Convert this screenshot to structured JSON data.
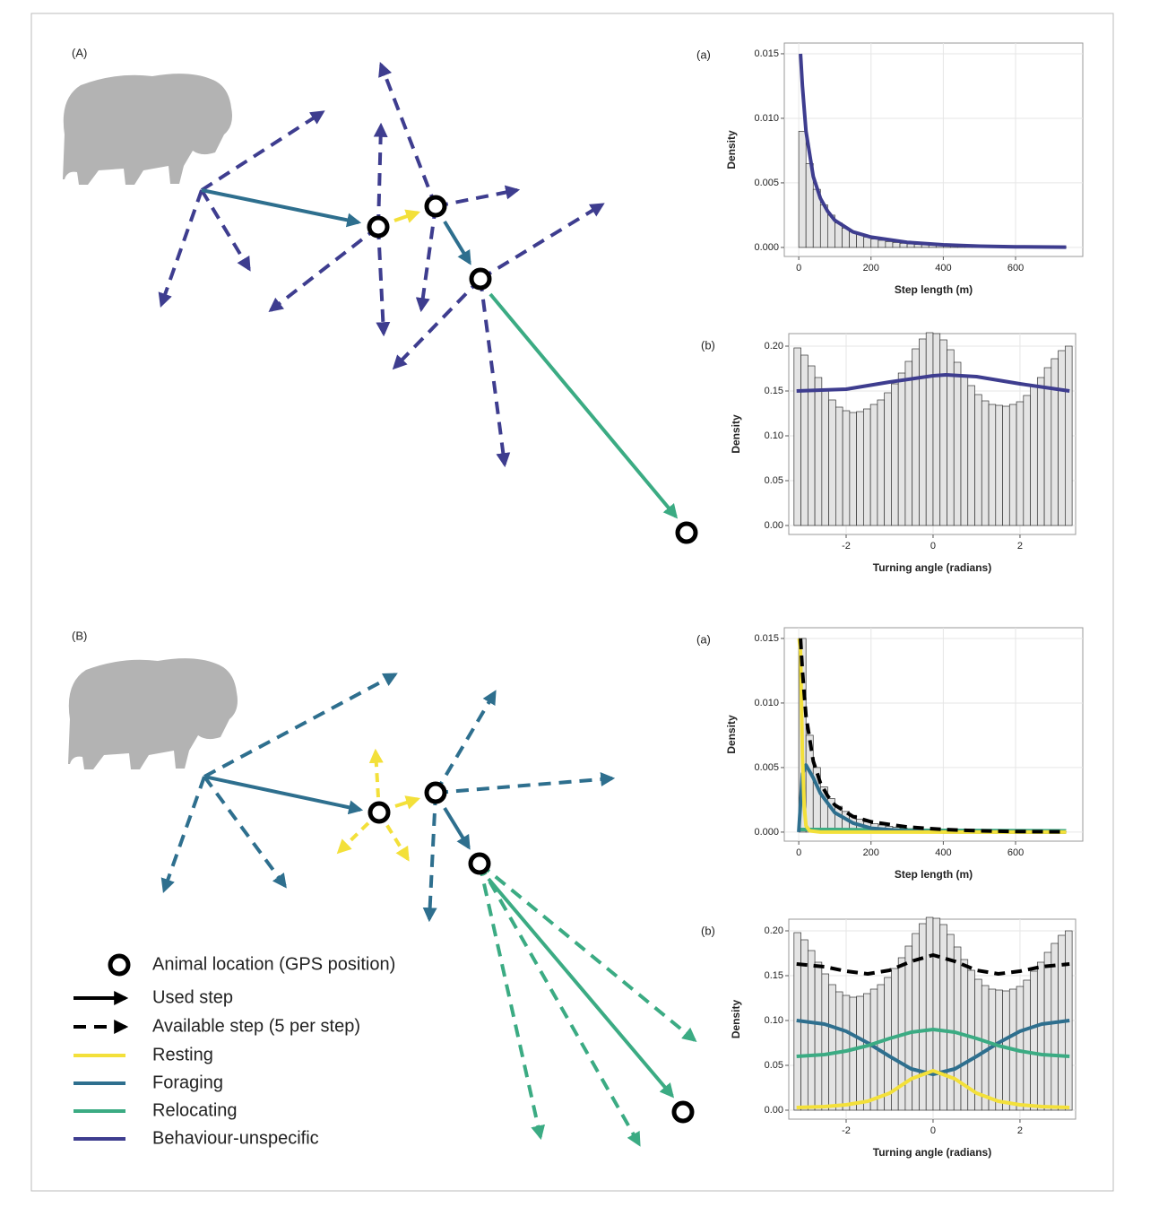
{
  "panels": [
    {
      "label": "(A)"
    },
    {
      "label": "(B)"
    }
  ],
  "legend": {
    "entries": [
      {
        "label": "Animal location (GPS position)"
      },
      {
        "label": "Used step",
        "color": "#000000"
      },
      {
        "label": "Available step (5 per step)",
        "color": "#000000"
      },
      {
        "label": "Resting",
        "color": "#f3e03a"
      },
      {
        "label": "Foraging",
        "color": "#2e6f8e"
      },
      {
        "label": "Relocating",
        "color": "#3bab83"
      },
      {
        "label": "Behaviour-unspecific",
        "color": "#3e3d8f"
      }
    ]
  },
  "chart_data": [
    {
      "type": "histogram",
      "panel_label": "(a)",
      "xlabel": "Step length (m)",
      "ylabel": "Density",
      "grid": true,
      "bar_color": "#e4e4e4",
      "bins": [
        0,
        20,
        40,
        60,
        80,
        100,
        120,
        140,
        160,
        180,
        200,
        220,
        240,
        260,
        280,
        300,
        320,
        340,
        360,
        380,
        400,
        420,
        440,
        460,
        480,
        500,
        520,
        540,
        560,
        580,
        600,
        620,
        640,
        660,
        680,
        700,
        720,
        740
      ],
      "values": [
        0.009,
        0.0065,
        0.0045,
        0.0033,
        0.0025,
        0.0019,
        0.0015,
        0.0012,
        0.001,
        0.0008,
        0.00065,
        0.00055,
        0.00045,
        0.00038,
        0.00032,
        0.00027,
        0.00023,
        0.0002,
        0.00017,
        0.00015,
        0.00013,
        0.00011,
        0.0001,
        9e-05,
        8e-05,
        7e-05,
        6e-05,
        5e-05,
        5e-05,
        4e-05,
        4e-05,
        3e-05,
        3e-05,
        3e-05,
        2e-05,
        2e-05,
        2e-05
      ],
      "xlim": [
        -40,
        786
      ],
      "ylim": [
        -0.0007,
        0.01583
      ],
      "xticks": [
        0,
        200,
        400,
        600
      ],
      "yticks": [
        {
          "value": 0,
          "label": "0.000"
        },
        {
          "value": 0.005,
          "label": "0.005"
        },
        {
          "value": 0.01,
          "label": "0.010"
        },
        {
          "value": 0.015,
          "label": "0.015"
        }
      ],
      "curves": [
        {
          "color": "#3e3d8f",
          "dashed": false,
          "x": [
            5,
            10,
            20,
            40,
            60,
            80,
            100,
            150,
            200,
            300,
            400,
            500,
            600,
            740
          ],
          "values": [
            0.015,
            0.0125,
            0.009,
            0.0055,
            0.0038,
            0.0028,
            0.0021,
            0.0012,
            0.0008,
            0.0004,
            0.0002,
            0.0001,
            5e-05,
            2e-05
          ]
        }
      ]
    },
    {
      "type": "histogram",
      "panel_label": "(b)",
      "xlabel": "Turning angle (radians)",
      "ylabel": "Density",
      "grid": true,
      "bar_color": "#e4e4e4",
      "bins": [
        -3.2,
        -3.04,
        -2.88,
        -2.72,
        -2.56,
        -2.4,
        -2.24,
        -2.08,
        -1.92,
        -1.76,
        -1.6,
        -1.44,
        -1.28,
        -1.12,
        -0.96,
        -0.8,
        -0.64,
        -0.48,
        -0.32,
        -0.16,
        0,
        0.16,
        0.32,
        0.48,
        0.64,
        0.8,
        0.96,
        1.12,
        1.28,
        1.44,
        1.6,
        1.76,
        1.92,
        2.08,
        2.24,
        2.4,
        2.56,
        2.72,
        2.88,
        3.04,
        3.2
      ],
      "values": [
        0.198,
        0.19,
        0.178,
        0.165,
        0.152,
        0.14,
        0.132,
        0.128,
        0.126,
        0.127,
        0.13,
        0.135,
        0.14,
        0.148,
        0.158,
        0.17,
        0.183,
        0.197,
        0.208,
        0.215,
        0.214,
        0.207,
        0.196,
        0.182,
        0.168,
        0.156,
        0.146,
        0.139,
        0.135,
        0.134,
        0.133,
        0.135,
        0.138,
        0.145,
        0.155,
        0.165,
        0.176,
        0.186,
        0.195,
        0.2
      ],
      "xlim": [
        -3.32,
        3.28
      ],
      "ylim": [
        -0.01,
        0.214
      ],
      "xticks": [
        -2,
        0,
        2
      ],
      "yticks": [
        {
          "value": 0,
          "label": "0.00"
        },
        {
          "value": 0.05,
          "label": "0.05"
        },
        {
          "value": 0.1,
          "label": "0.10"
        },
        {
          "value": 0.15,
          "label": "0.15"
        },
        {
          "value": 0.2,
          "label": "0.20"
        }
      ],
      "curves": [
        {
          "color": "#3e3d8f",
          "dashed": false,
          "x": [
            -3.14,
            -2,
            -1,
            0,
            0.3,
            1,
            2,
            3.14
          ],
          "values": [
            0.15,
            0.152,
            0.16,
            0.167,
            0.168,
            0.166,
            0.158,
            0.15
          ]
        }
      ]
    },
    {
      "type": "histogram",
      "panel_label": "(a)",
      "xlabel": "Step length (m)",
      "ylabel": "Density",
      "grid": true,
      "bar_color": "#e4e4e4",
      "bins": [
        0,
        20,
        40,
        60,
        80,
        100,
        120,
        140,
        160,
        180,
        200,
        220,
        240,
        260,
        280,
        300,
        320,
        340,
        360,
        380,
        400,
        420,
        440,
        460,
        480,
        500,
        520,
        540,
        560,
        580,
        600,
        620,
        640,
        660,
        680,
        700,
        720,
        740
      ],
      "values": [
        0.015,
        0.0075,
        0.005,
        0.0035,
        0.0026,
        0.002,
        0.0016,
        0.0013,
        0.001,
        0.0008,
        0.00065,
        0.00055,
        0.00045,
        0.00038,
        0.00032,
        0.00027,
        0.00023,
        0.0002,
        0.00017,
        0.00015,
        0.00013,
        0.00011,
        0.0001,
        9e-05,
        8e-05,
        7e-05,
        6e-05,
        5e-05,
        5e-05,
        4e-05,
        4e-05,
        3e-05,
        3e-05,
        3e-05,
        2e-05,
        2e-05,
        2e-05
      ],
      "xlim": [
        -40,
        786
      ],
      "ylim": [
        -0.0007,
        0.01583
      ],
      "xticks": [
        0,
        200,
        400,
        600
      ],
      "yticks": [
        {
          "value": 0,
          "label": "0.000"
        },
        {
          "value": 0.005,
          "label": "0.005"
        },
        {
          "value": 0.01,
          "label": "0.010"
        },
        {
          "value": 0.015,
          "label": "0.015"
        }
      ],
      "curves": [
        {
          "color": "#3bab83",
          "dashed": false,
          "x": [
            0,
            100,
            300,
            740
          ],
          "values": [
            0.0002,
            0.0002,
            0.00015,
            0.0001
          ]
        },
        {
          "color": "#2e6f8e",
          "dashed": false,
          "x": [
            0,
            10,
            20,
            40,
            60,
            100,
            150,
            200,
            300,
            400,
            740
          ],
          "values": [
            0,
            0.0045,
            0.0052,
            0.0042,
            0.003,
            0.0015,
            0.0007,
            0.0003,
            8e-05,
            2e-05,
            0
          ]
        },
        {
          "color": "#f3e03a",
          "dashed": false,
          "x": [
            1,
            5,
            10,
            15,
            20,
            30,
            60,
            740
          ],
          "values": [
            0.015,
            0.014,
            0.006,
            0.002,
            0.0005,
            0.0001,
            0,
            0
          ]
        },
        {
          "color": "#000000",
          "dashed": true,
          "x": [
            5,
            10,
            20,
            40,
            60,
            80,
            100,
            150,
            200,
            300,
            400,
            500,
            600,
            740
          ],
          "values": [
            0.015,
            0.0125,
            0.009,
            0.0055,
            0.0038,
            0.0028,
            0.0021,
            0.0012,
            0.0008,
            0.0004,
            0.0002,
            0.0001,
            5e-05,
            2e-05
          ]
        }
      ]
    },
    {
      "type": "histogram",
      "panel_label": "(b)",
      "xlabel": "Turning angle (radians)",
      "ylabel": "Density",
      "grid": true,
      "bar_color": "#e4e4e4",
      "bins": [
        -3.2,
        -3.04,
        -2.88,
        -2.72,
        -2.56,
        -2.4,
        -2.24,
        -2.08,
        -1.92,
        -1.76,
        -1.6,
        -1.44,
        -1.28,
        -1.12,
        -0.96,
        -0.8,
        -0.64,
        -0.48,
        -0.32,
        -0.16,
        0,
        0.16,
        0.32,
        0.48,
        0.64,
        0.8,
        0.96,
        1.12,
        1.28,
        1.44,
        1.6,
        1.76,
        1.92,
        2.08,
        2.24,
        2.4,
        2.56,
        2.72,
        2.88,
        3.04,
        3.2
      ],
      "values": [
        0.198,
        0.19,
        0.178,
        0.165,
        0.152,
        0.14,
        0.132,
        0.128,
        0.126,
        0.127,
        0.13,
        0.135,
        0.14,
        0.148,
        0.158,
        0.17,
        0.183,
        0.197,
        0.208,
        0.215,
        0.214,
        0.207,
        0.196,
        0.182,
        0.168,
        0.156,
        0.146,
        0.139,
        0.135,
        0.134,
        0.133,
        0.135,
        0.138,
        0.145,
        0.155,
        0.165,
        0.176,
        0.186,
        0.195,
        0.2
      ],
      "xlim": [
        -3.32,
        3.28
      ],
      "ylim": [
        -0.01,
        0.213
      ],
      "xticks": [
        -2,
        0,
        2
      ],
      "yticks": [
        {
          "value": 0,
          "label": "0.00"
        },
        {
          "value": 0.05,
          "label": "0.05"
        },
        {
          "value": 0.1,
          "label": "0.10"
        },
        {
          "value": 0.15,
          "label": "0.15"
        },
        {
          "value": 0.2,
          "label": "0.20"
        }
      ],
      "curves": [
        {
          "color": "#000000",
          "dashed": true,
          "x": [
            -3.14,
            -2.5,
            -2,
            -1.5,
            -1,
            -0.5,
            0,
            0.5,
            1,
            1.5,
            2,
            2.5,
            3.14
          ],
          "values": [
            0.163,
            0.16,
            0.155,
            0.152,
            0.156,
            0.166,
            0.173,
            0.166,
            0.156,
            0.152,
            0.155,
            0.16,
            0.163
          ]
        },
        {
          "color": "#2e6f8e",
          "dashed": false,
          "x": [
            -3.14,
            -2.5,
            -2,
            -1.5,
            -1,
            -0.5,
            0,
            0.5,
            1,
            1.5,
            2,
            2.5,
            3.14
          ],
          "values": [
            0.1,
            0.096,
            0.088,
            0.075,
            0.06,
            0.046,
            0.04,
            0.046,
            0.06,
            0.075,
            0.088,
            0.096,
            0.1
          ]
        },
        {
          "color": "#3bab83",
          "dashed": false,
          "x": [
            -3.14,
            -2.5,
            -2,
            -1.5,
            -1,
            -0.5,
            0,
            0.5,
            1,
            1.5,
            2,
            2.5,
            3.14
          ],
          "values": [
            0.06,
            0.062,
            0.066,
            0.072,
            0.08,
            0.087,
            0.09,
            0.087,
            0.08,
            0.072,
            0.066,
            0.062,
            0.06
          ]
        },
        {
          "color": "#f3e03a",
          "dashed": false,
          "x": [
            -3.14,
            -2.5,
            -2,
            -1.5,
            -1,
            -0.5,
            0,
            0.5,
            1,
            1.5,
            2,
            2.5,
            3.14
          ],
          "values": [
            0.003,
            0.004,
            0.006,
            0.01,
            0.019,
            0.035,
            0.044,
            0.035,
            0.019,
            0.01,
            0.006,
            0.004,
            0.003
          ]
        }
      ]
    }
  ]
}
